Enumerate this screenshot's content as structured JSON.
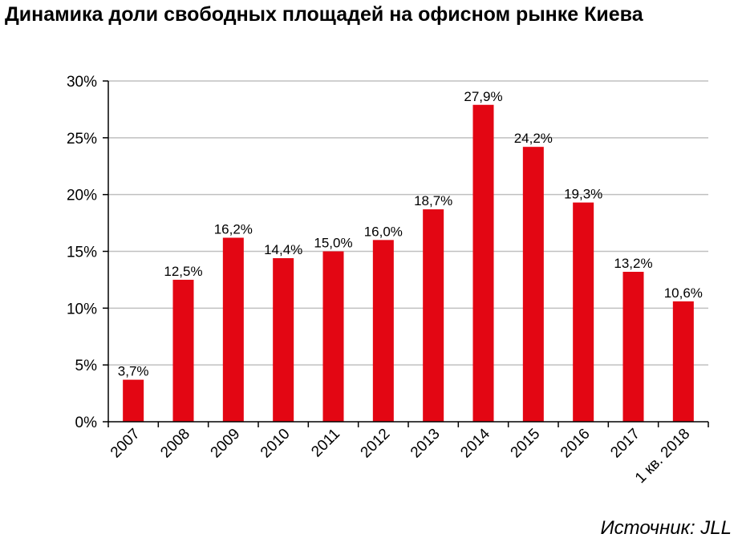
{
  "title": "Динамика доли свободных площадей на офисном рынке Киева",
  "source": "Источник: JLL",
  "colors": {
    "bar": "#e30613",
    "grid": "#c0c0c0",
    "axis": "#000000"
  },
  "chart_data": {
    "type": "bar",
    "categories": [
      "2007",
      "2008",
      "2009",
      "2010",
      "2011",
      "2012",
      "2013",
      "2014",
      "2015",
      "2016",
      "2017",
      "1 кв. 2018"
    ],
    "values": [
      3.7,
      12.5,
      16.2,
      14.4,
      15.0,
      16.0,
      18.7,
      27.9,
      24.2,
      19.3,
      13.2,
      10.6
    ],
    "data_labels": [
      "3,7%",
      "12,5%",
      "16,2%",
      "14,4%",
      "15,0%",
      "16,0%",
      "18,7%",
      "27,9%",
      "24,2%",
      "19,3%",
      "13,2%",
      "10,6%"
    ],
    "yticks": [
      0,
      5,
      10,
      15,
      20,
      25,
      30
    ],
    "ytick_labels": [
      "0%",
      "5%",
      "10%",
      "15%",
      "20%",
      "25%",
      "30%"
    ],
    "ylim": [
      0,
      30
    ],
    "grid": true,
    "legend": false
  }
}
